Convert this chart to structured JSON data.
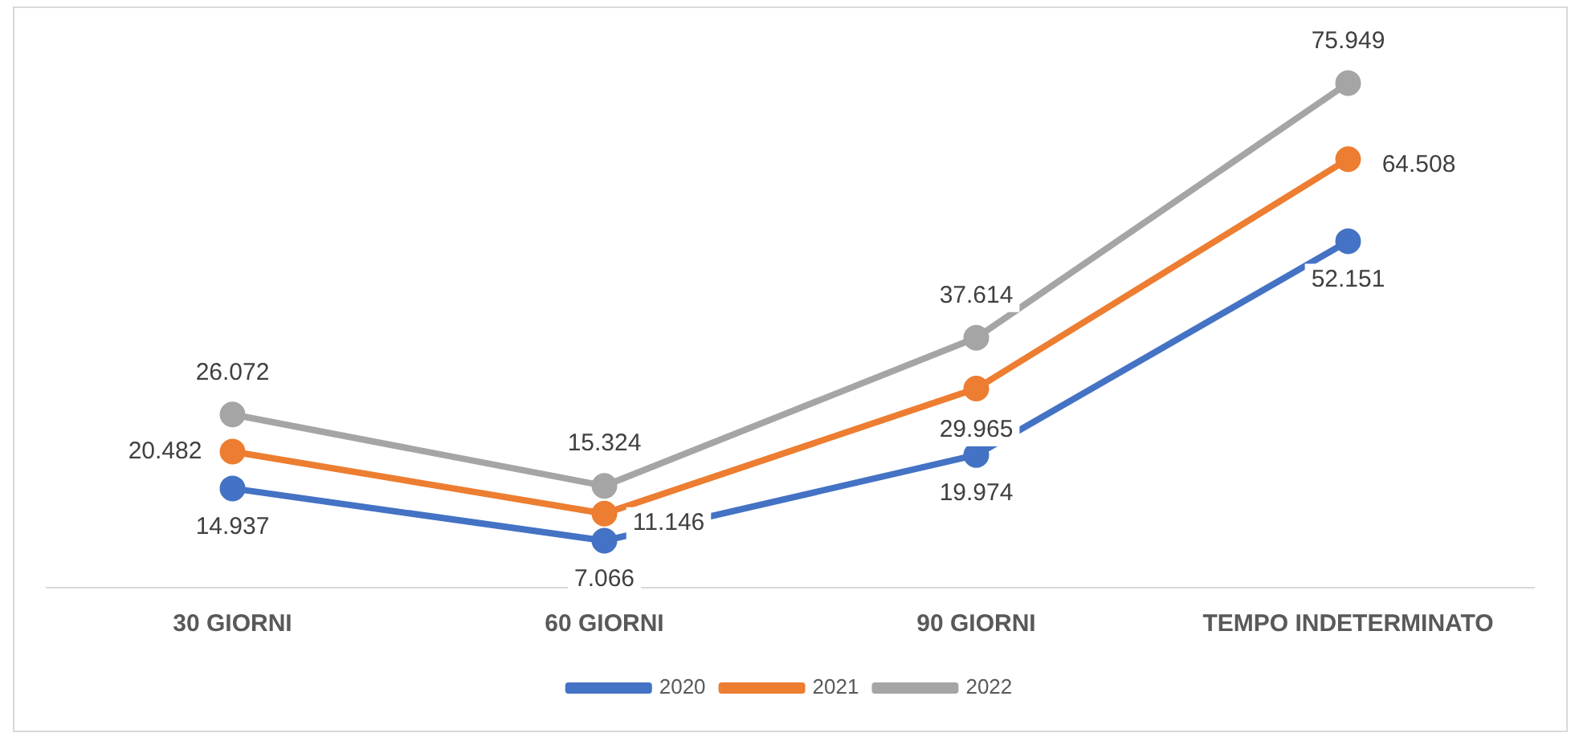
{
  "chart_data": {
    "type": "line",
    "categories": [
      "30 GIORNI",
      "60 GIORNI",
      "90 GIORNI",
      "TEMPO INDETERMINATO"
    ],
    "series": [
      {
        "name": "2020",
        "color": "#4472c4",
        "values": [
          14937,
          7066,
          19974,
          52151
        ],
        "value_labels": [
          "14.937",
          "7.066",
          "19.974",
          "52.151"
        ]
      },
      {
        "name": "2021",
        "color": "#ed7d31",
        "values": [
          20482,
          11146,
          29965,
          64508
        ],
        "value_labels": [
          "20.482",
          "11.146",
          "29.965",
          "64.508"
        ]
      },
      {
        "name": "2022",
        "color": "#a5a5a5",
        "values": [
          26072,
          15324,
          37614,
          75949
        ],
        "value_labels": [
          "26.072",
          "15.324",
          "37.614",
          "75.949"
        ]
      }
    ],
    "tick_labels": "x",
    "grid": false,
    "legend": "bottom",
    "marker": "circle",
    "line_style": "solid"
  }
}
